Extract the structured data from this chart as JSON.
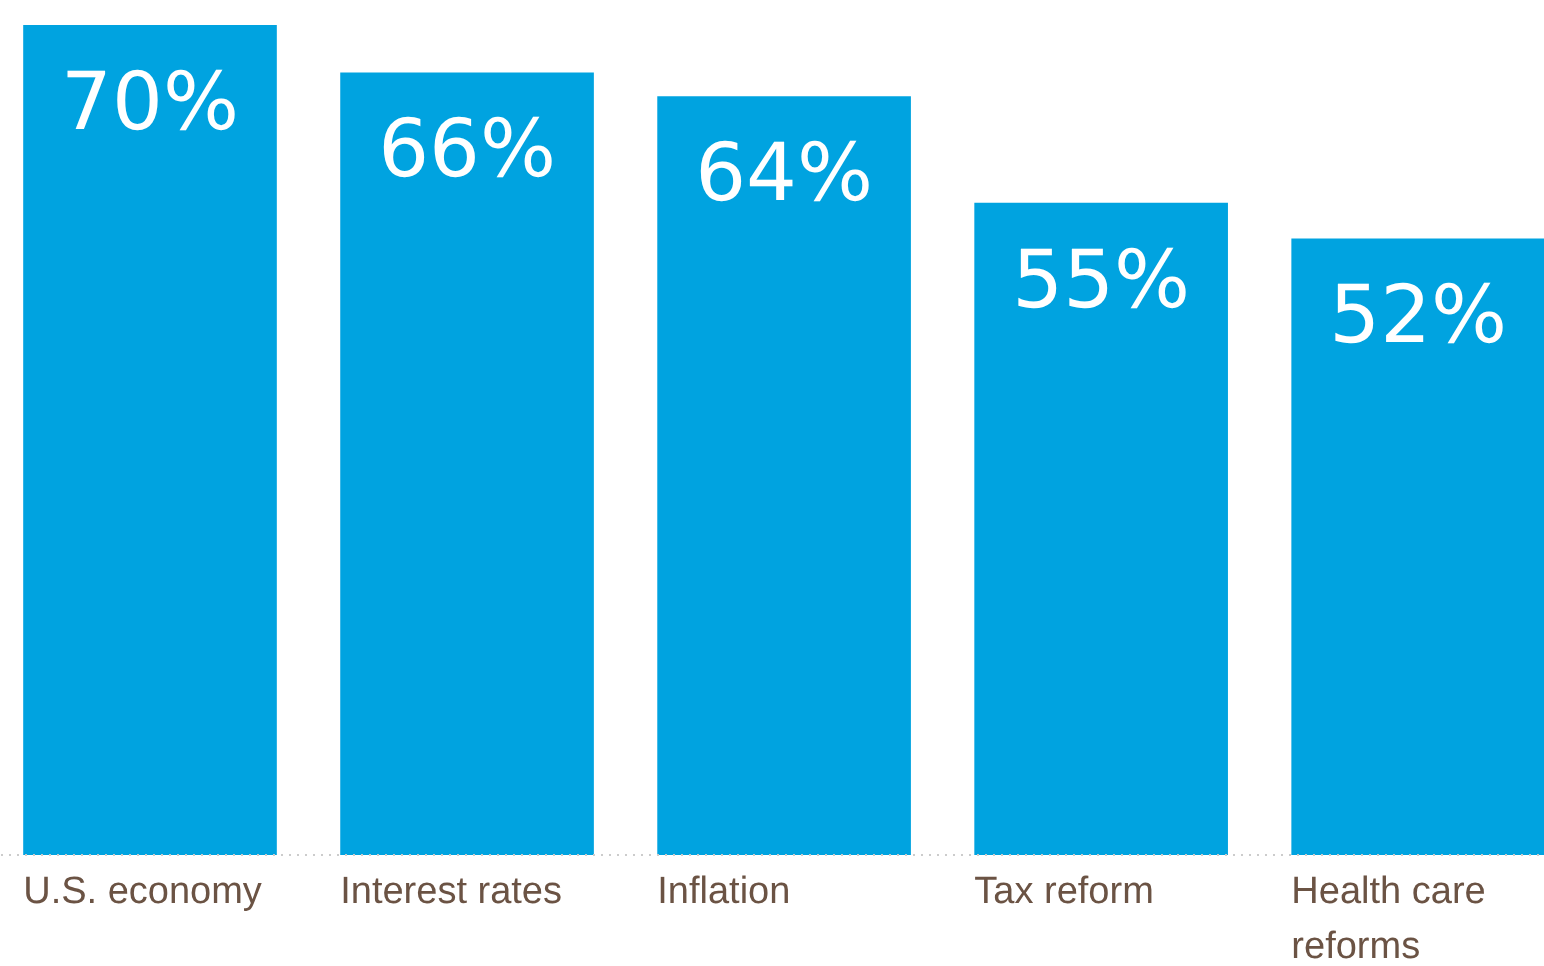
{
  "chart_data": {
    "type": "bar",
    "categories": [
      "U.S. economy",
      "Interest rates",
      "Inflation",
      "Tax reform",
      "Health care reforms"
    ],
    "values": [
      70,
      66,
      64,
      55,
      52
    ],
    "value_labels": [
      "70%",
      "66%",
      "64%",
      "55%",
      "52%"
    ],
    "color": "#00a3e0",
    "tick_labels": "x",
    "grid": false
  }
}
